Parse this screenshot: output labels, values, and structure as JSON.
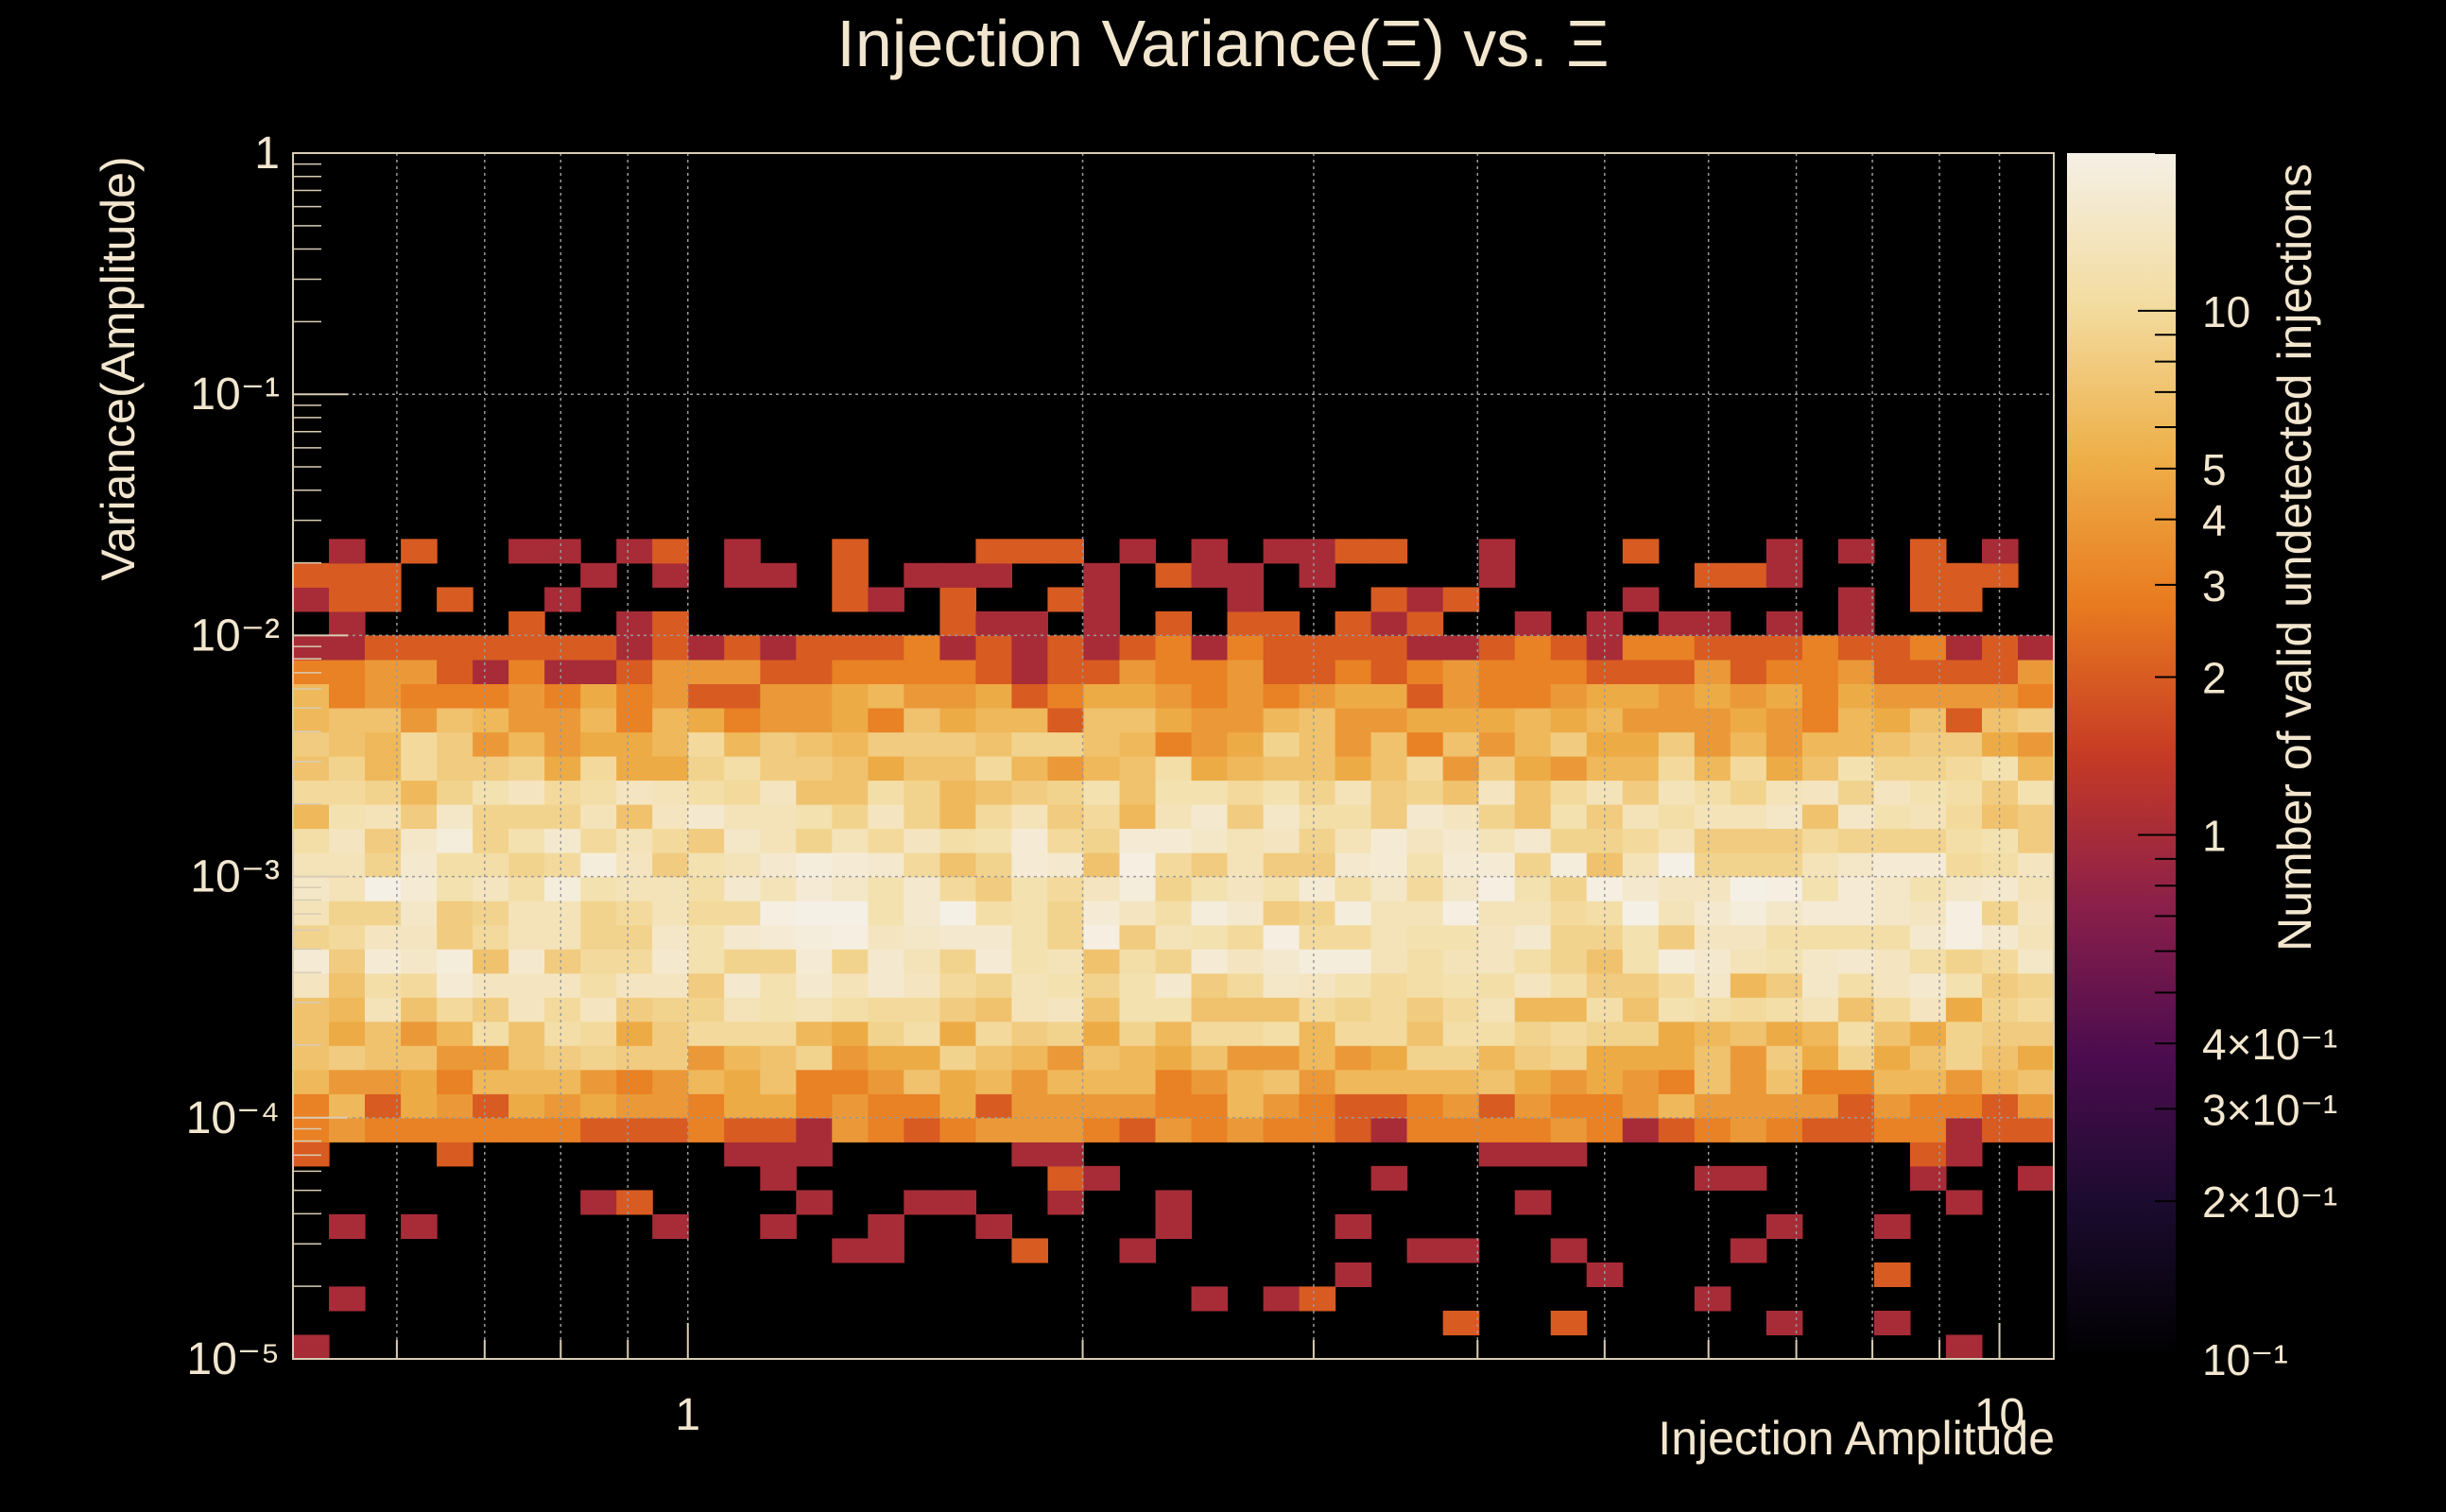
{
  "chart_data": {
    "type": "heatmap",
    "title": "Injection Variance(Ξ) vs. Ξ",
    "xlabel": "Injection Amplitude",
    "ylabel": "Variance(Amplitude)",
    "zlabel": "Number of valid undetected injections",
    "x_scale": "log",
    "y_scale": "log",
    "z_scale": "log",
    "xlim": [
      0.5,
      11.0
    ],
    "ylim": [
      1e-05,
      1
    ],
    "zlim": [
      0.1,
      20
    ],
    "grid": true,
    "x_bins": 49,
    "y_bins": 50,
    "x_ticks": [
      {
        "value": 1,
        "label": "1"
      },
      {
        "value": 10,
        "label": "10"
      }
    ],
    "y_ticks": [
      {
        "value": 1,
        "label": "1"
      },
      {
        "value": 0.1,
        "label": "10⁻¹"
      },
      {
        "value": 0.01,
        "label": "10⁻²"
      },
      {
        "value": 0.001,
        "label": "10⁻³"
      },
      {
        "value": 0.0001,
        "label": "10⁻⁴"
      },
      {
        "value": 1e-05,
        "label": "10⁻⁵"
      }
    ],
    "z_ticks": [
      {
        "value": 10,
        "label": "10"
      },
      {
        "value": 5,
        "label": "5"
      },
      {
        "value": 4,
        "label": "4"
      },
      {
        "value": 3,
        "label": "3"
      },
      {
        "value": 2,
        "label": "2"
      },
      {
        "value": 1,
        "label": "1"
      },
      {
        "value": 0.4,
        "label": "4×10⁻¹"
      },
      {
        "value": 0.3,
        "label": "3×10⁻¹"
      },
      {
        "value": 0.2,
        "label": "2×10⁻¹"
      },
      {
        "value": 0.1,
        "label": "10⁻¹"
      }
    ],
    "colormap": [
      "#000000",
      "#1a0b2e",
      "#4b0c4f",
      "#8a1f4a",
      "#c63a25",
      "#e87a1f",
      "#eeb04a",
      "#f3dca0",
      "#f5f0e6"
    ],
    "band_profile": "counts peak near variance 1e-3 (up to about 16 per bin), falling to about 5 at 1e-2 and 1e-4, with sparse counts of 1-2 extending from about 1e-5 to 2.5e-2"
  }
}
